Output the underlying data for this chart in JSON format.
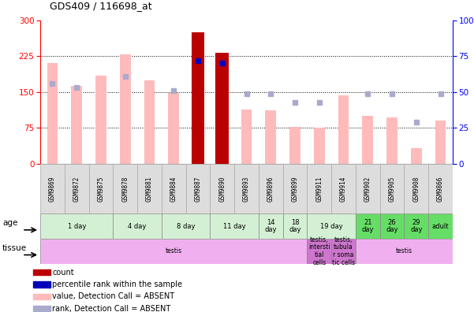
{
  "title": "GDS409 / 116698_at",
  "samples": [
    "GSM9869",
    "GSM9872",
    "GSM9875",
    "GSM9878",
    "GSM9881",
    "GSM9884",
    "GSM9887",
    "GSM9890",
    "GSM9893",
    "GSM9896",
    "GSM9899",
    "GSM9911",
    "GSM9914",
    "GSM9902",
    "GSM9905",
    "GSM9908",
    "GSM9866"
  ],
  "values_absent": [
    210,
    163,
    185,
    228,
    175,
    148,
    null,
    null,
    113,
    112,
    77,
    75,
    143,
    100,
    97,
    33,
    90
  ],
  "ranks_absent_pct": [
    56,
    53,
    null,
    61,
    null,
    51,
    null,
    null,
    49,
    49,
    43,
    43,
    null,
    49,
    49,
    29,
    49
  ],
  "counts": [
    null,
    null,
    null,
    null,
    null,
    null,
    275,
    232,
    null,
    null,
    null,
    null,
    null,
    null,
    null,
    null,
    null
  ],
  "pct_ranks": [
    null,
    null,
    null,
    null,
    null,
    null,
    72,
    70,
    null,
    null,
    null,
    null,
    null,
    null,
    null,
    null,
    null
  ],
  "ylim_left": [
    0,
    300
  ],
  "ylim_right": [
    0,
    100
  ],
  "yticks_left": [
    0,
    75,
    150,
    225,
    300
  ],
  "yticks_right": [
    0,
    25,
    50,
    75,
    100
  ],
  "age_groups": [
    {
      "label": "1 day",
      "start": 0,
      "end": 3,
      "color": "#d4f0d4"
    },
    {
      "label": "4 day",
      "start": 3,
      "end": 5,
      "color": "#d4f0d4"
    },
    {
      "label": "8 day",
      "start": 5,
      "end": 7,
      "color": "#d4f0d4"
    },
    {
      "label": "11 day",
      "start": 7,
      "end": 9,
      "color": "#d4f0d4"
    },
    {
      "label": "14\nday",
      "start": 9,
      "end": 10,
      "color": "#d4f0d4"
    },
    {
      "label": "18\nday",
      "start": 10,
      "end": 11,
      "color": "#d4f0d4"
    },
    {
      "label": "19 day",
      "start": 11,
      "end": 13,
      "color": "#d4f0d4"
    },
    {
      "label": "21\nday",
      "start": 13,
      "end": 14,
      "color": "#66dd66"
    },
    {
      "label": "26\nday",
      "start": 14,
      "end": 15,
      "color": "#66dd66"
    },
    {
      "label": "29\nday",
      "start": 15,
      "end": 16,
      "color": "#66dd66"
    },
    {
      "label": "adult",
      "start": 16,
      "end": 17,
      "color": "#66dd66"
    }
  ],
  "tissue_groups": [
    {
      "label": "testis",
      "start": 0,
      "end": 11,
      "color": "#f0b0f0"
    },
    {
      "label": "testis,\nintersti\ntial\ncells",
      "start": 11,
      "end": 12,
      "color": "#cc77cc"
    },
    {
      "label": "testis,\ntubula\nr soma\ntic cells",
      "start": 12,
      "end": 13,
      "color": "#cc77cc"
    },
    {
      "label": "testis",
      "start": 13,
      "end": 17,
      "color": "#f0b0f0"
    }
  ],
  "color_count": "#bb0000",
  "color_pct": "#0000bb",
  "color_absent_val": "#ffbbbb",
  "color_absent_rank": "#aaaacc",
  "bg_color": "#ffffff",
  "plot_bg": "#ffffff"
}
